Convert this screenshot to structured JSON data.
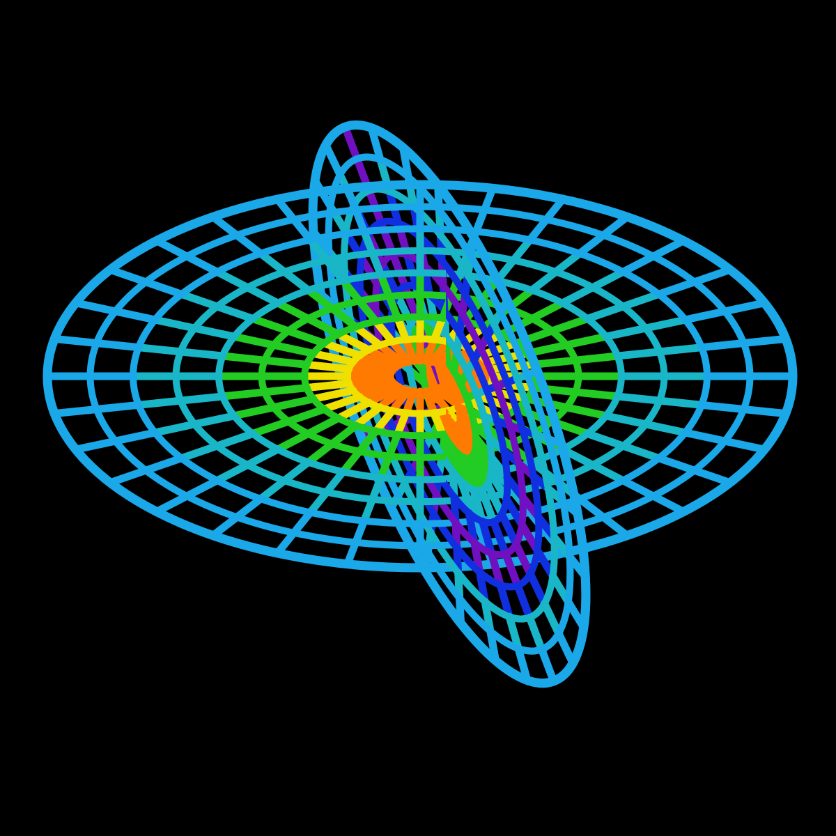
{
  "scene": {
    "background": "#000000",
    "palette": {
      "rim": "#1aa8e8",
      "outer": "#19b6c8",
      "mid": "#22cc22",
      "inner_warm": "#f0e000",
      "inner_hot": "#ff7a00",
      "core": "#ff1a00",
      "vertical_cool": "#1030e0",
      "vertical_violet": "#7010c0"
    },
    "objects": [
      {
        "name": "horizontal-disk-wireframe",
        "rings": 8,
        "spokes": 32
      },
      {
        "name": "vertical-disk-wireframe",
        "rings": 8,
        "spokes": 24
      }
    ]
  }
}
